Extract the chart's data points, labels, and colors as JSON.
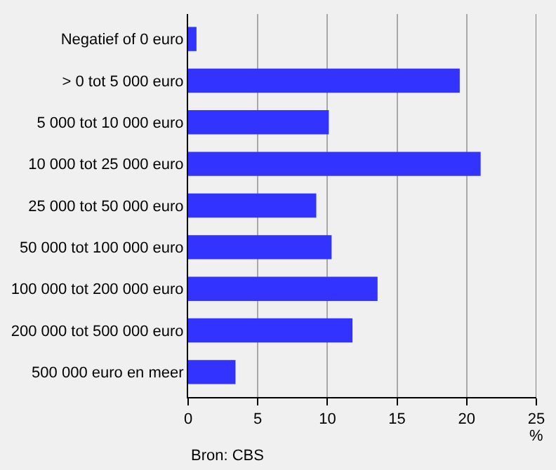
{
  "chart_data": {
    "type": "bar",
    "orientation": "horizontal",
    "categories": [
      "Negatief of 0 euro",
      "> 0 tot 5 000 euro",
      "5 000 tot 10 000 euro",
      "10 000 tot 25 000 euro",
      "25 000 tot 50 000 euro",
      "50 000 tot 100 000 euro",
      "100 000 tot 200 000 euro",
      "200 000 tot 500 000 euro",
      "500 000 euro en meer"
    ],
    "values": [
      0.6,
      19.5,
      10.1,
      21.0,
      9.2,
      10.3,
      13.6,
      11.8,
      3.4
    ],
    "color": "#3333ff",
    "xlabel": "%",
    "xlim": [
      0,
      25
    ],
    "xticks": [
      0,
      5,
      10,
      15,
      20,
      25
    ],
    "grid": "x",
    "legend": false,
    "annotations": [
      "Bron: CBS"
    ]
  }
}
